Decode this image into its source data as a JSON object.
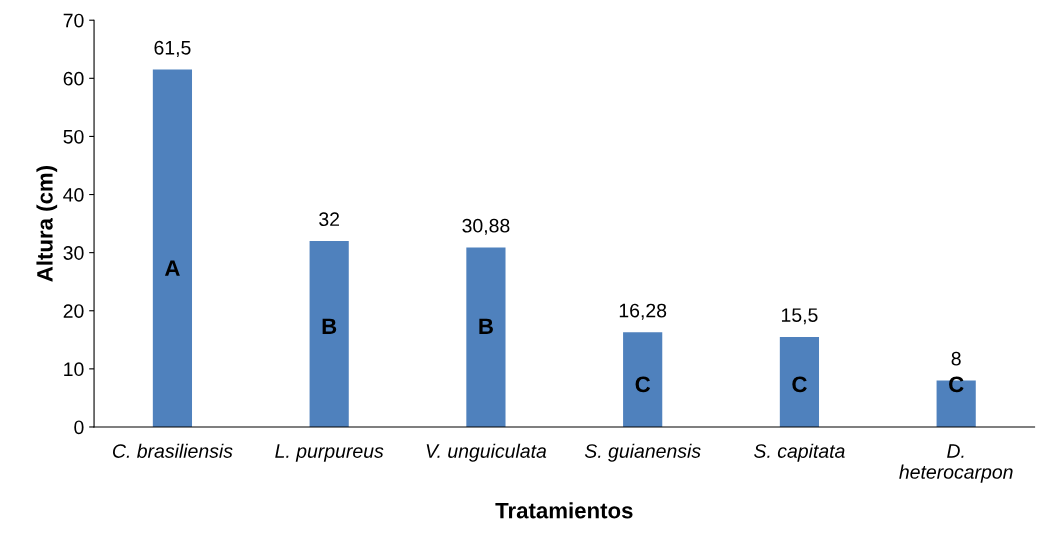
{
  "chart_data": {
    "type": "bar",
    "categories": [
      "C. brasiliensis",
      "L. purpureus",
      "V. unguiculata",
      "S. guianensis",
      "S. capitata",
      "D.\nheterocarpon"
    ],
    "values": [
      61.5,
      32,
      30.88,
      16.28,
      15.5,
      8
    ],
    "value_labels": [
      "61,5",
      "32",
      "30,88",
      "16,28",
      "15,5",
      "8"
    ],
    "color": "#4f81bd",
    "xlabel": "Tratamientos",
    "ylabel": "Altura (cm)",
    "ylim": [
      0,
      70
    ],
    "yticks": [
      0,
      10,
      20,
      30,
      40,
      50,
      60,
      70
    ],
    "grid": false,
    "annotations": [
      "A",
      "B",
      "B",
      "C",
      "C",
      "C"
    ]
  }
}
